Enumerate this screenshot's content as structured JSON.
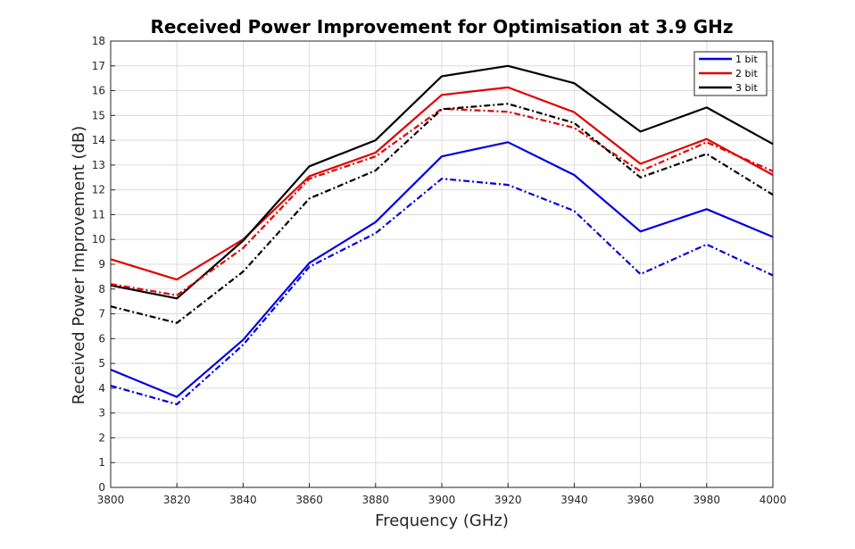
{
  "chart_data": {
    "type": "line",
    "title": "Received Power Improvement for Optimisation at 3.9 GHz",
    "xlabel": "Frequency (GHz)",
    "ylabel": "Received Power Improvement (dB)",
    "xlim": [
      3800,
      4000
    ],
    "ylim": [
      0,
      18
    ],
    "x_ticks": [
      3800,
      3820,
      3840,
      3860,
      3880,
      3900,
      3920,
      3940,
      3960,
      3980,
      4000
    ],
    "y_ticks": [
      0,
      1,
      2,
      3,
      4,
      5,
      6,
      7,
      8,
      9,
      10,
      11,
      12,
      13,
      14,
      15,
      16,
      17,
      18
    ],
    "grid": true,
    "legend_position": "top-right",
    "legend": [
      {
        "label": "1 bit",
        "color": "#0000e0"
      },
      {
        "label": "2 bit",
        "color": "#e00000"
      },
      {
        "label": "3 bit",
        "color": "#000000"
      }
    ],
    "x": [
      3800,
      3820,
      3840,
      3860,
      3880,
      3900,
      3920,
      3940,
      3960,
      3980,
      4000
    ],
    "series": [
      {
        "color": "#0000e0",
        "style": "solid",
        "values": [
          4.75,
          3.65,
          5.95,
          9.05,
          10.7,
          13.35,
          13.92,
          12.6,
          10.32,
          11.22,
          10.1
        ]
      },
      {
        "color": "#e00000",
        "style": "solid",
        "values": [
          9.2,
          8.38,
          10.0,
          12.55,
          13.5,
          15.83,
          16.13,
          15.13,
          13.05,
          14.05,
          12.6
        ]
      },
      {
        "color": "#000000",
        "style": "solid",
        "values": [
          8.15,
          7.62,
          9.95,
          12.95,
          14.0,
          16.58,
          17.0,
          16.3,
          14.35,
          15.32,
          13.85
        ]
      },
      {
        "color": "#0000e0",
        "style": "dashdot",
        "values": [
          4.1,
          3.35,
          5.75,
          8.9,
          10.25,
          12.45,
          12.2,
          11.15,
          8.6,
          9.8,
          8.55
        ]
      },
      {
        "color": "#e00000",
        "style": "dashdot",
        "values": [
          8.2,
          7.75,
          9.65,
          12.45,
          13.35,
          15.27,
          15.15,
          14.5,
          12.75,
          13.92,
          12.75
        ]
      },
      {
        "color": "#000000",
        "style": "dashdot",
        "values": [
          7.3,
          6.63,
          8.7,
          11.65,
          12.78,
          15.25,
          15.47,
          14.7,
          12.5,
          13.45,
          11.8
        ]
      }
    ]
  }
}
